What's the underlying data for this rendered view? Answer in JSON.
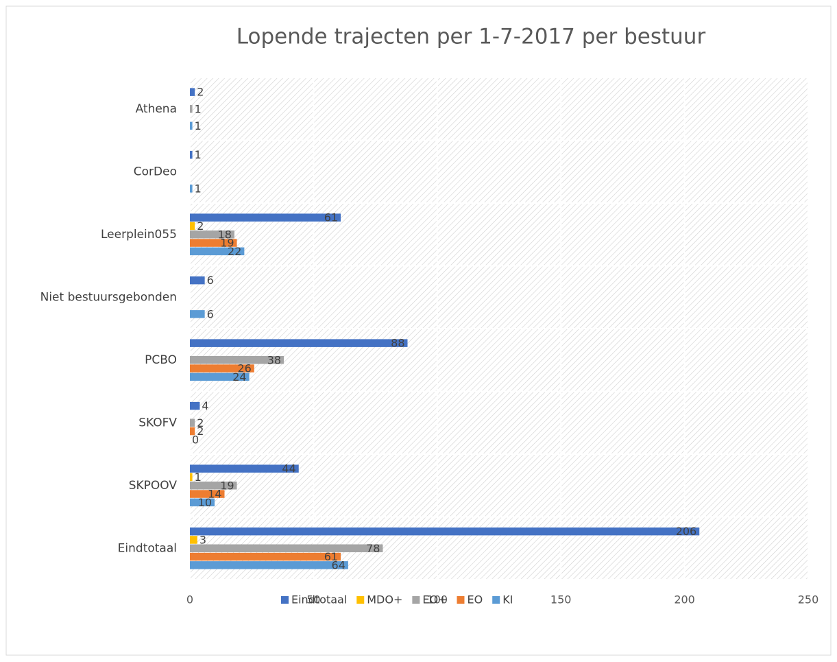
{
  "chart_data": {
    "type": "bar",
    "orientation": "horizontal",
    "title": "Lopende trajecten per 1-7-2017 per bestuur",
    "categories": [
      "Athena",
      "CorDeo",
      "Leerplein055",
      "Niet bestuursgebonden",
      "PCBO",
      "SKOFV",
      "SKPOOV",
      "Eindtotaal"
    ],
    "series": [
      {
        "name": "Eindtotaal",
        "color": "#4472c4",
        "values": [
          2,
          1,
          61,
          6,
          88,
          4,
          44,
          206
        ]
      },
      {
        "name": "MDO+",
        "color": "#ffc000",
        "values": [
          null,
          null,
          2,
          null,
          null,
          null,
          1,
          3
        ]
      },
      {
        "name": "EO+",
        "color": "#a5a5a5",
        "values": [
          1,
          null,
          18,
          null,
          38,
          2,
          19,
          78
        ]
      },
      {
        "name": "EO",
        "color": "#ed7d31",
        "values": [
          null,
          null,
          19,
          null,
          26,
          2,
          14,
          61
        ]
      },
      {
        "name": "KI",
        "color": "#5b9bd5",
        "values": [
          1,
          1,
          22,
          6,
          24,
          0,
          10,
          64
        ]
      }
    ],
    "xlim": [
      0,
      250
    ],
    "xticks": [
      0,
      50,
      100,
      150,
      200,
      250
    ],
    "grid": true,
    "legend": "bottom"
  }
}
